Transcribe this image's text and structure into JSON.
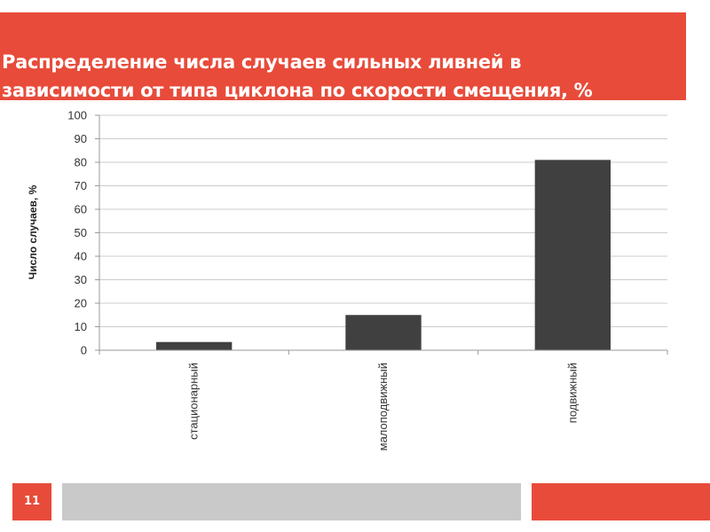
{
  "slide": {
    "title_line1": "Распределение числа случаев сильных ливней в",
    "title_line2": "зависимости от типа циклона по скорости смещения, %",
    "page_number": "11",
    "accent_color": "#e84b3a",
    "footer_bar_color": "#c9c9c9"
  },
  "chart_data": {
    "type": "bar",
    "title": "",
    "xlabel": "",
    "ylabel": "Число случаев, %",
    "categories": [
      "стационарный",
      "малоподвижный",
      "подвижный"
    ],
    "values": [
      3.5,
      15,
      81
    ],
    "ylim": [
      0,
      100
    ],
    "yticks": [
      0,
      10,
      20,
      30,
      40,
      50,
      60,
      70,
      80,
      90,
      100
    ],
    "grid": true,
    "bar_color": "#404040",
    "legend": "none"
  }
}
